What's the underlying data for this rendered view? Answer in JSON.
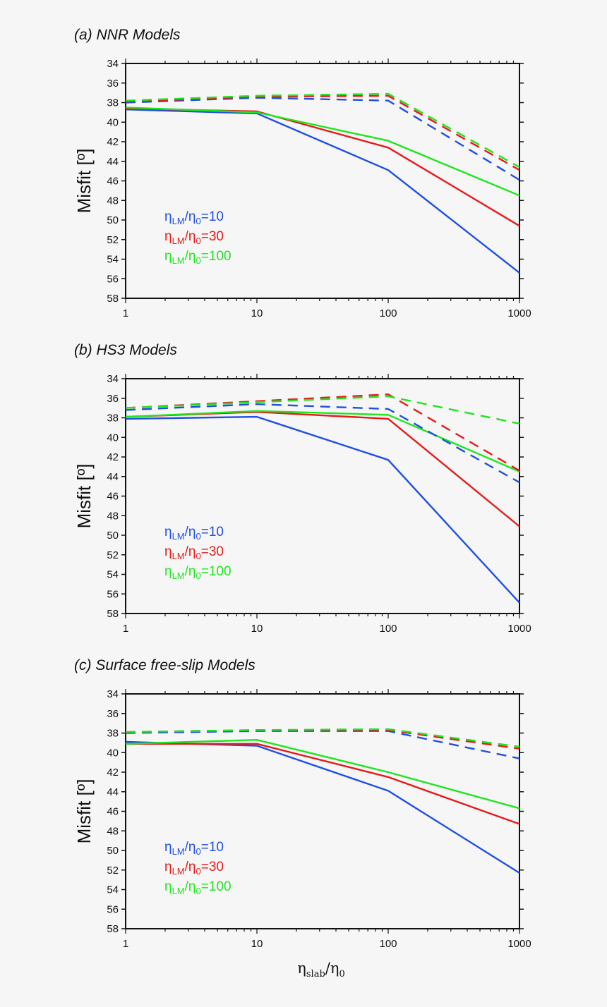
{
  "chart_data": [
    {
      "type": "line",
      "title": "(a) NNR Models",
      "xlabel_main": "η",
      "xlabel_sub": "slab",
      "xlabel_main2": "/η",
      "xlabel_sub2": "0",
      "xlabel_visible": false,
      "ylabel": "Misfit [º]",
      "xscale": "log",
      "x": [
        1,
        10,
        100,
        1000
      ],
      "x_ticks": [
        "1",
        "10",
        "100",
        "1000"
      ],
      "y_ticks": [
        "34",
        "36",
        "38",
        "40",
        "42",
        "44",
        "46",
        "48",
        "50",
        "52",
        "54",
        "56",
        "58"
      ],
      "ylim": [
        34,
        58
      ],
      "y_inverted": true,
      "legend_position": "lower-left",
      "series": [
        {
          "name": "ηLM/η0=10",
          "label_main": "η",
          "label_sub": "LM",
          "label_mid": "/η",
          "label_sub2": "0",
          "label_tail": "=10",
          "color": "#1f4fe6",
          "style": "solid",
          "values": [
            38.7,
            39.1,
            44.9,
            55.4
          ],
          "in_legend": true
        },
        {
          "name": "ηLM/η0=30",
          "label_main": "η",
          "label_sub": "LM",
          "label_mid": "/η",
          "label_sub2": "0",
          "label_tail": "=30",
          "color": "#e61b1b",
          "style": "solid",
          "values": [
            38.6,
            38.9,
            42.6,
            50.6
          ],
          "in_legend": true
        },
        {
          "name": "ηLM/η0=100",
          "label_main": "η",
          "label_sub": "LM",
          "label_mid": "/η",
          "label_sub2": "0",
          "label_tail": "=100",
          "color": "#1ee61e",
          "style": "solid",
          "values": [
            38.5,
            39.0,
            41.9,
            47.5
          ],
          "in_legend": true
        },
        {
          "name": "",
          "color": "#1f4fe6",
          "style": "dashed",
          "values": [
            38.0,
            37.5,
            37.8,
            45.9
          ],
          "in_legend": false
        },
        {
          "name": "",
          "color": "#e61b1b",
          "style": "dashed",
          "values": [
            37.9,
            37.4,
            37.3,
            44.9
          ],
          "in_legend": false
        },
        {
          "name": "",
          "color": "#1ee61e",
          "style": "dashed",
          "values": [
            37.8,
            37.3,
            37.1,
            44.6
          ],
          "in_legend": false
        }
      ]
    },
    {
      "type": "line",
      "title": "(b) HS3 Models",
      "xlabel_main": "η",
      "xlabel_sub": "slab",
      "xlabel_main2": "/η",
      "xlabel_sub2": "0",
      "xlabel_visible": false,
      "ylabel": "Misfit [º]",
      "xscale": "log",
      "x": [
        1,
        10,
        100,
        1000
      ],
      "x_ticks": [
        "1",
        "10",
        "100",
        "1000"
      ],
      "y_ticks": [
        "34",
        "36",
        "38",
        "40",
        "42",
        "44",
        "46",
        "48",
        "50",
        "52",
        "54",
        "56",
        "58"
      ],
      "ylim": [
        34,
        58
      ],
      "y_inverted": true,
      "legend_position": "lower-left",
      "series": [
        {
          "name": "ηLM/η0=10",
          "label_main": "η",
          "label_sub": "LM",
          "label_mid": "/η",
          "label_sub2": "0",
          "label_tail": "=10",
          "color": "#1f4fe6",
          "style": "solid",
          "values": [
            38.1,
            37.9,
            42.3,
            56.9
          ],
          "in_legend": true
        },
        {
          "name": "ηLM/η0=30",
          "label_main": "η",
          "label_sub": "LM",
          "label_mid": "/η",
          "label_sub2": "0",
          "label_tail": "=30",
          "color": "#e61b1b",
          "style": "solid",
          "values": [
            37.9,
            37.4,
            38.1,
            49.1
          ],
          "in_legend": true
        },
        {
          "name": "ηLM/η0=100",
          "label_main": "η",
          "label_sub": "LM",
          "label_mid": "/η",
          "label_sub2": "0",
          "label_tail": "=100",
          "color": "#1ee61e",
          "style": "solid",
          "values": [
            37.9,
            37.3,
            37.7,
            43.5
          ],
          "in_legend": true
        },
        {
          "name": "",
          "color": "#1f4fe6",
          "style": "dashed",
          "values": [
            37.2,
            36.6,
            37.1,
            44.6
          ],
          "in_legend": false
        },
        {
          "name": "",
          "color": "#e61b1b",
          "style": "dashed",
          "values": [
            37.0,
            36.3,
            35.6,
            43.4
          ],
          "in_legend": false
        },
        {
          "name": "",
          "color": "#1ee61e",
          "style": "dashed",
          "values": [
            37.0,
            36.4,
            35.8,
            38.6
          ],
          "in_legend": false
        }
      ]
    },
    {
      "type": "line",
      "title": "(c) Surface free-slip Models",
      "xlabel_main": "η",
      "xlabel_sub": "slab",
      "xlabel_main2": "/η",
      "xlabel_sub2": "0",
      "xlabel_visible": true,
      "ylabel": "Misfit [º]",
      "xscale": "log",
      "x": [
        1,
        10,
        100,
        1000
      ],
      "x_ticks": [
        "1",
        "10",
        "100",
        "1000"
      ],
      "y_ticks": [
        "34",
        "36",
        "38",
        "40",
        "42",
        "44",
        "46",
        "48",
        "50",
        "52",
        "54",
        "56",
        "58"
      ],
      "ylim": [
        34,
        58
      ],
      "y_inverted": true,
      "legend_position": "lower-left",
      "series": [
        {
          "name": "ηLM/η0=10",
          "label_main": "η",
          "label_sub": "LM",
          "label_mid": "/η",
          "label_sub2": "0",
          "label_tail": "=10",
          "color": "#1f4fe6",
          "style": "solid",
          "values": [
            38.9,
            39.3,
            43.9,
            52.3
          ],
          "in_legend": true
        },
        {
          "name": "ηLM/η0=30",
          "label_main": "η",
          "label_sub": "LM",
          "label_mid": "/η",
          "label_sub2": "0",
          "label_tail": "=30",
          "color": "#e61b1b",
          "style": "solid",
          "values": [
            39.1,
            39.1,
            42.5,
            47.3
          ],
          "in_legend": true
        },
        {
          "name": "ηLM/η0=100",
          "label_main": "η",
          "label_sub": "LM",
          "label_mid": "/η",
          "label_sub2": "0",
          "label_tail": "=100",
          "color": "#1ee61e",
          "style": "solid",
          "values": [
            39.1,
            38.7,
            42.0,
            45.7
          ],
          "in_legend": true
        },
        {
          "name": "",
          "color": "#1f4fe6",
          "style": "dashed",
          "values": [
            38.0,
            37.8,
            37.8,
            40.6
          ],
          "in_legend": false
        },
        {
          "name": "",
          "color": "#e61b1b",
          "style": "dashed",
          "values": [
            37.9,
            37.7,
            37.7,
            39.6
          ],
          "in_legend": false
        },
        {
          "name": "",
          "color": "#1ee61e",
          "style": "dashed",
          "values": [
            37.9,
            37.7,
            37.6,
            39.4
          ],
          "in_legend": false
        }
      ]
    }
  ]
}
